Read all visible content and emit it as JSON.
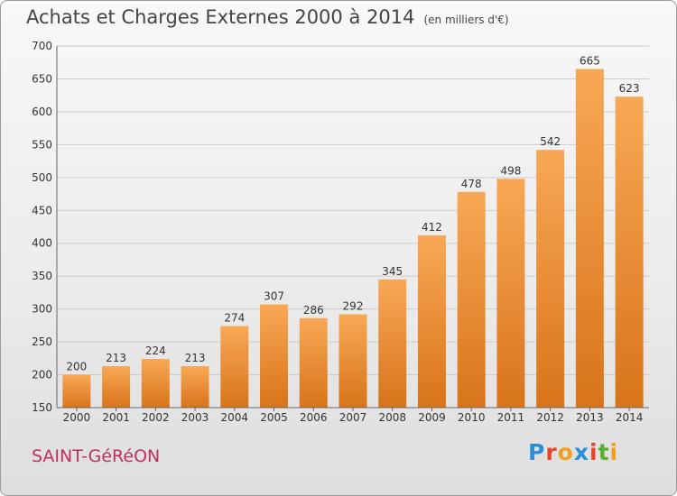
{
  "header": {
    "title": "Achats et Charges Externes 2000 à 2014",
    "subtitle": "(en milliers d'€)"
  },
  "footer": {
    "city": "SAINT-GéRéON",
    "logo_letters": [
      "P",
      "r",
      "o",
      "x",
      "i",
      "t",
      "i"
    ],
    "logo_colors": [
      "#2a8fd6",
      "#e8452c",
      "#f0a020",
      "#2a8fd6",
      "#e8452c",
      "#55b030",
      "#f0a020"
    ]
  },
  "colors": {
    "bar_top": "#f8a855",
    "bar_bottom": "#d8741a",
    "grid": "#cccccc",
    "axis": "#666666"
  },
  "chart_data": {
    "type": "bar",
    "title": "Achats et Charges Externes 2000 à 2014",
    "subtitle": "(en milliers d'€)",
    "categories": [
      "2000",
      "2001",
      "2002",
      "2003",
      "2004",
      "2005",
      "2006",
      "2007",
      "2008",
      "2009",
      "2010",
      "2011",
      "2012",
      "2013",
      "2014"
    ],
    "values": [
      200,
      213,
      224,
      213,
      274,
      307,
      286,
      292,
      345,
      412,
      478,
      498,
      542,
      665,
      623
    ],
    "ylim": [
      150,
      700
    ],
    "yticks": [
      150,
      200,
      250,
      300,
      350,
      400,
      450,
      500,
      550,
      600,
      650,
      700
    ],
    "grid": true,
    "xlabel": "",
    "ylabel": ""
  }
}
